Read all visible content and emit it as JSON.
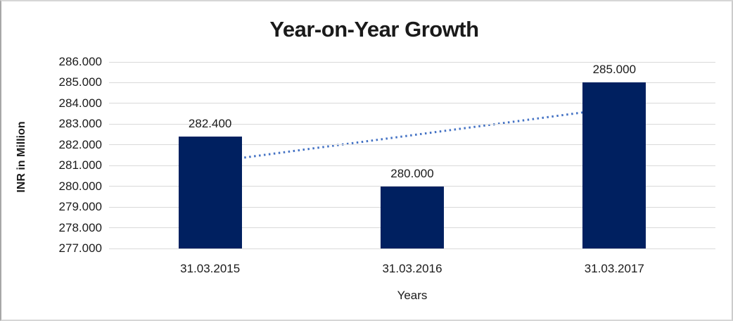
{
  "chart_data": {
    "type": "bar",
    "title": "Year-on-Year Growth",
    "xlabel": "Years",
    "ylabel": "INR in Million",
    "categories": [
      "31.03.2015",
      "31.03.2016",
      "31.03.2017"
    ],
    "series": [
      {
        "name": "INR in Million",
        "values": [
          282.4,
          280.0,
          285.0
        ],
        "data_labels": [
          "282.400",
          "280.000",
          "285.000"
        ]
      }
    ],
    "ylim": [
      277,
      286
    ],
    "ytick_step": 1,
    "ytick_labels": [
      "277.000",
      "278.000",
      "279.000",
      "280.000",
      "281.000",
      "282.000",
      "283.000",
      "284.000",
      "285.000",
      "286.000"
    ],
    "grid": "horizontal-on",
    "legend_position": "none",
    "colors": {
      "bar": "#002060",
      "trendline": "#4472c4",
      "gridline": "#d9d9d9",
      "text": "#1a1a1a",
      "background": "#ffffff"
    },
    "trendline": {
      "type": "linear",
      "style": "dotted",
      "span": "first-to-last-category"
    }
  }
}
